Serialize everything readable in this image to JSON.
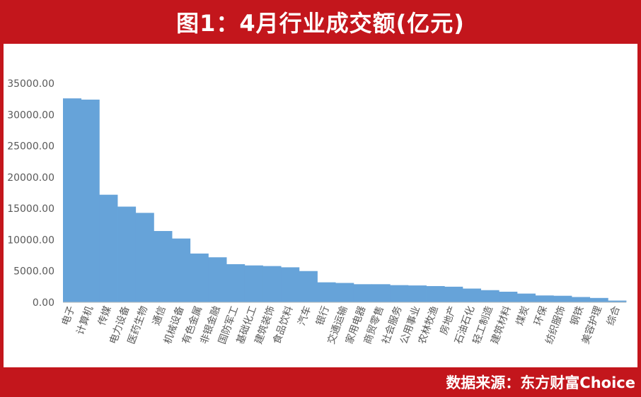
{
  "header": {
    "title": "图1：4月行业成交额(亿元)"
  },
  "footer": {
    "source": "数据来源：东方财富Choice"
  },
  "colors": {
    "frame": "#c3161c",
    "bar": "#66a3d9",
    "text": "#595959",
    "axis": "#bfbfbf"
  },
  "chart_data": {
    "type": "bar",
    "title": "图1：4月行业成交额(亿元)",
    "categories": [
      "电子",
      "计算机",
      "传媒",
      "电力设备",
      "医药生物",
      "通信",
      "机械设备",
      "有色金属",
      "非银金融",
      "国防军工",
      "基础化工",
      "建筑装饰",
      "食品饮料",
      "汽车",
      "银行",
      "交通运输",
      "家用电器",
      "商贸零售",
      "社会服务",
      "公用事业",
      "农林牧渔",
      "房地产",
      "石油石化",
      "轻工制造",
      "建筑材料",
      "煤炭",
      "环保",
      "纺织服饰",
      "钢铁",
      "美容护理",
      "综合"
    ],
    "values": [
      32600,
      32400,
      17200,
      15300,
      14300,
      11400,
      10200,
      7800,
      7200,
      6100,
      5900,
      5800,
      5600,
      5000,
      3200,
      3100,
      2900,
      2900,
      2750,
      2700,
      2600,
      2500,
      2200,
      1950,
      1700,
      1400,
      1100,
      1050,
      850,
      700,
      280
    ],
    "yticks": [
      "0.00",
      "5000.00",
      "10000.00",
      "15000.00",
      "20000.00",
      "25000.00",
      "30000.00",
      "35000.00"
    ],
    "ylim": [
      0,
      35000
    ],
    "xlabel": "",
    "ylabel": "",
    "grid": false,
    "legend": "none"
  }
}
